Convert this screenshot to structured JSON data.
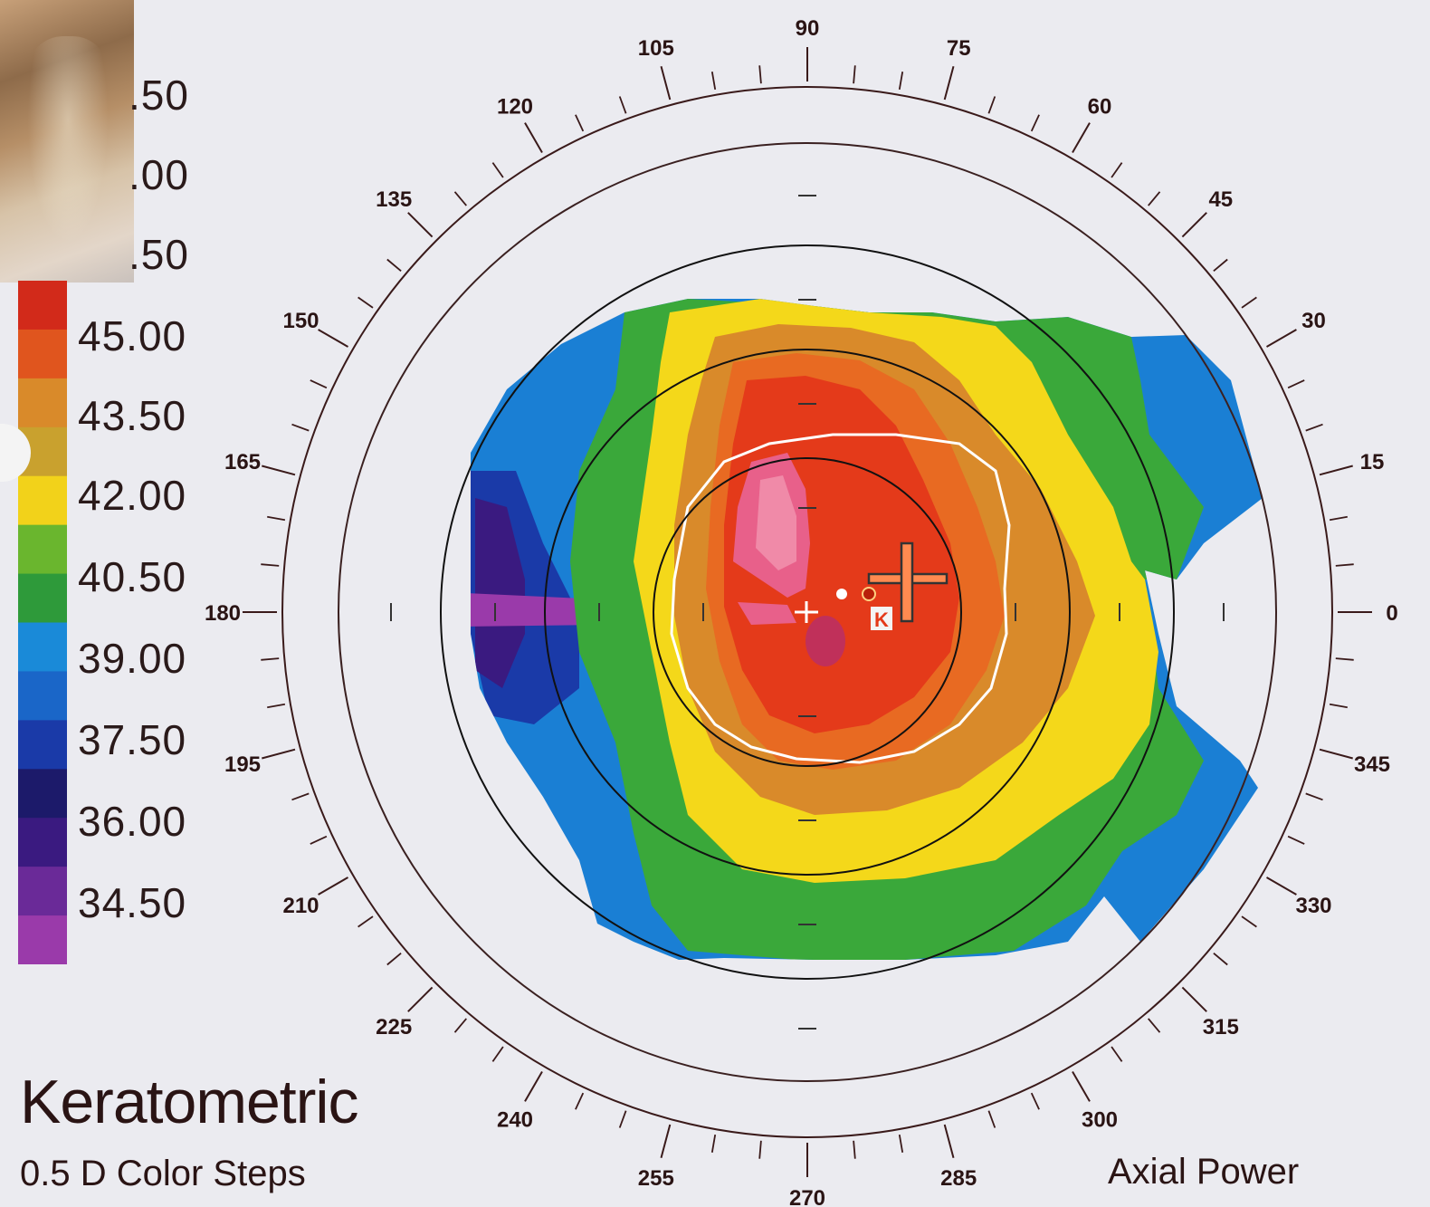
{
  "scale": {
    "labels": [
      ".50",
      ".00",
      ".50",
      "45.00",
      "43.50",
      "42.00",
      "40.50",
      "39.00",
      "37.50",
      "36.00",
      "34.50"
    ],
    "colors": [
      "#d22a1a",
      "#e0551e",
      "#d98a2a",
      "#c9a12e",
      "#f2d21a",
      "#6ab62e",
      "#2e9a3a",
      "#1a8ad8",
      "#1a66c8",
      "#1a3aa8",
      "#1c1a6a",
      "#3a1a80",
      "#6a2a98",
      "#9a3aaa"
    ]
  },
  "title": "Keratometric",
  "subtitle": "0.5 D Color Steps",
  "map_type": "Axial Power",
  "angles": [
    "0",
    "15",
    "30",
    "45",
    "60",
    "75",
    "90",
    "105",
    "120",
    "135",
    "150",
    "165",
    "180",
    "195",
    "210",
    "225",
    "240",
    "255",
    "270",
    "285",
    "300",
    "315",
    "330",
    "345"
  ],
  "zones": {
    "outer": "#1a7fd4",
    "green": "#3aa83a",
    "yellow": "#f4d81a",
    "orange": "#e09a2a",
    "orange_red": "#e86a22",
    "red": "#e43a1a",
    "pink": "#e8608a"
  }
}
